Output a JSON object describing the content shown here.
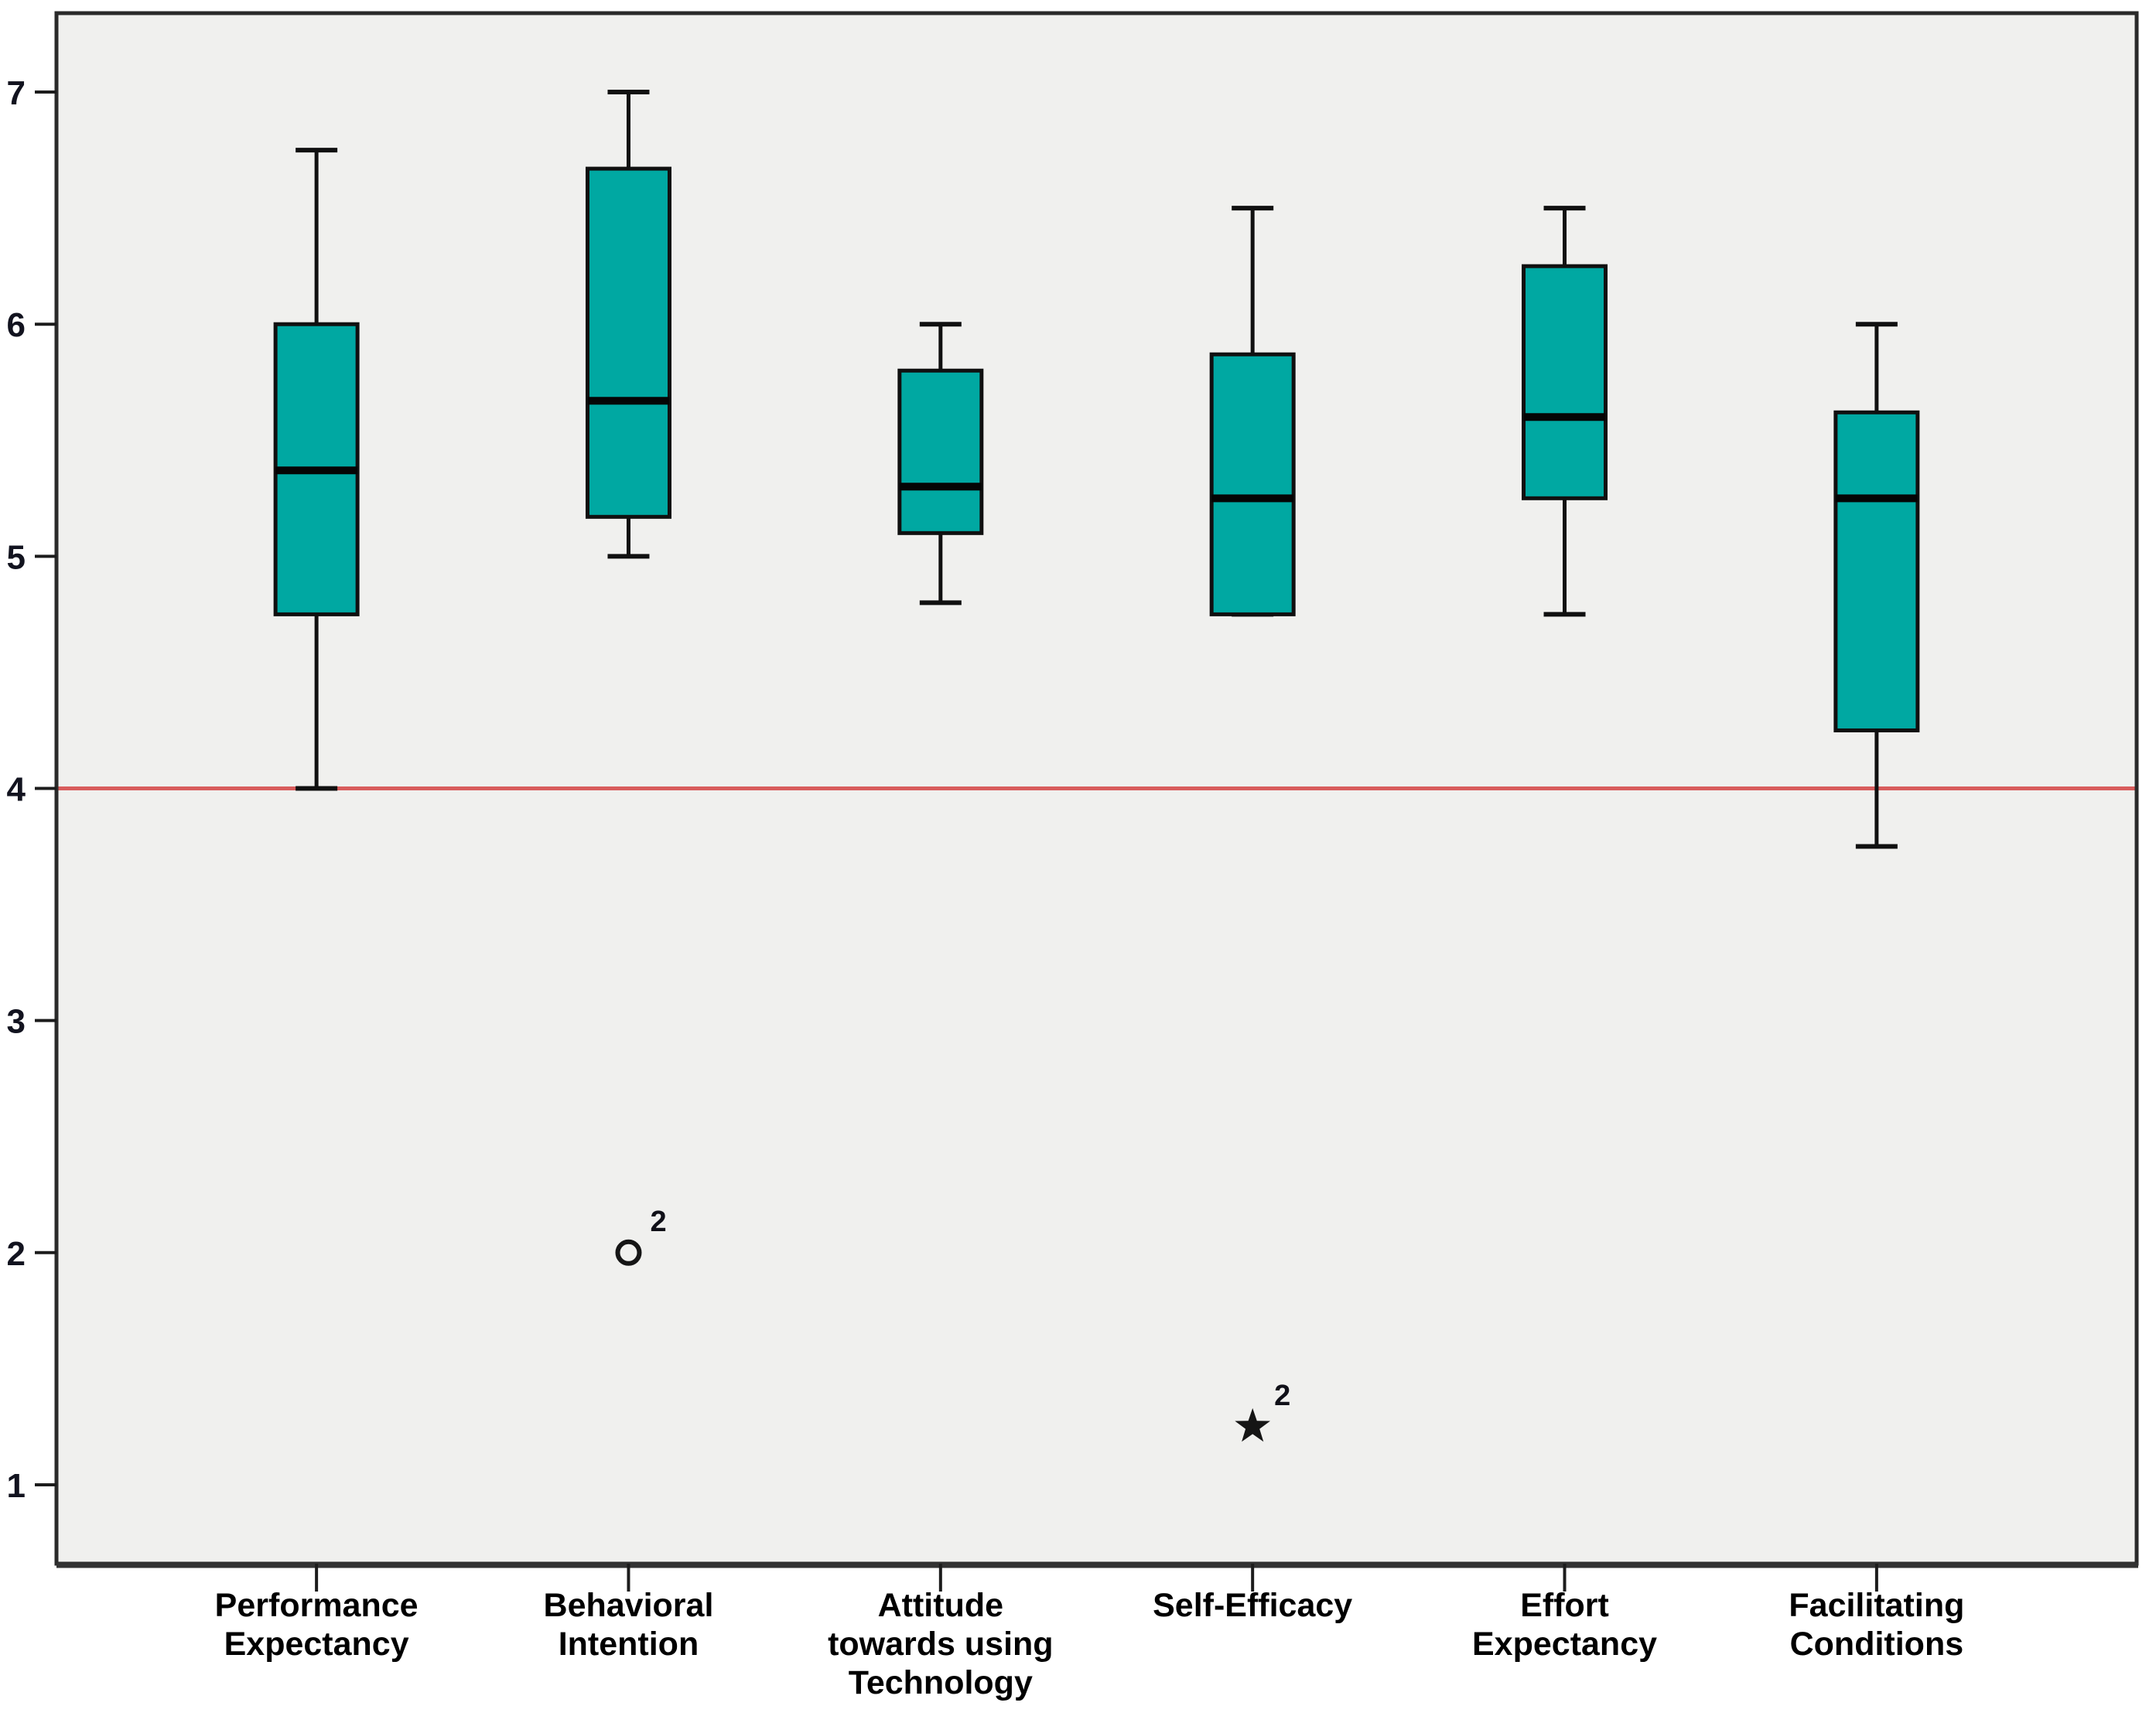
{
  "chart_data": {
    "type": "boxplot",
    "title": "",
    "xlabel": "",
    "ylabel": "",
    "ylim": [
      0.66,
      7.34
    ],
    "yticks": [
      "1",
      "2",
      "3",
      "4",
      "5",
      "6",
      "7"
    ],
    "grid": false,
    "legend": "none",
    "reference_line": {
      "y": 4,
      "color": "#d85c5c"
    },
    "colors": {
      "box_fill": "#00a8a2",
      "box_stroke": "#101010",
      "plot_background": "#f0f0ee",
      "frame": "#2a2a2a",
      "reference_line": "#d85c5c"
    },
    "series": [
      {
        "category": "Performance Expectancy",
        "label_lines": [
          "Performance",
          "Expectancy"
        ],
        "whisker_low": 4.0,
        "q1": 4.75,
        "median": 5.37,
        "q3": 6.0,
        "whisker_high": 6.75,
        "outliers": []
      },
      {
        "category": "Behavioral Intention",
        "label_lines": [
          "Behavioral",
          "Intention"
        ],
        "whisker_low": 5.0,
        "q1": 5.17,
        "median": 5.67,
        "q3": 6.67,
        "whisker_high": 7.0,
        "outliers": [
          {
            "value": 2.0,
            "marker": "circle",
            "label": "2"
          }
        ]
      },
      {
        "category": "Attitude towards using Technology",
        "label_lines": [
          "Attitude",
          "towards using",
          "Technology"
        ],
        "whisker_low": 4.8,
        "q1": 5.1,
        "median": 5.3,
        "q3": 5.8,
        "whisker_high": 6.0,
        "outliers": []
      },
      {
        "category": "Self-Efficacy",
        "label_lines": [
          "Self-Efficacy"
        ],
        "whisker_low": 4.75,
        "q1": 4.75,
        "median": 5.25,
        "q3": 5.87,
        "whisker_high": 6.5,
        "outliers": [
          {
            "value": 1.25,
            "marker": "star",
            "label": "2"
          }
        ]
      },
      {
        "category": "Effort Expectancy",
        "label_lines": [
          "Effort",
          "Expectancy"
        ],
        "whisker_low": 4.75,
        "q1": 5.25,
        "median": 5.6,
        "q3": 6.25,
        "whisker_high": 6.5,
        "outliers": []
      },
      {
        "category": "Facilitating Conditions",
        "label_lines": [
          "Facilitating",
          "Conditions"
        ],
        "whisker_low": 3.75,
        "q1": 4.25,
        "median": 5.25,
        "q3": 5.62,
        "whisker_high": 6.0,
        "outliers": []
      }
    ]
  }
}
